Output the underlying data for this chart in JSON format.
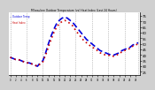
{
  "title": "Milwaukee Outdoor Temperature (vs) Heat Index (Last 24 Hours)",
  "background_color": "#d0d0d0",
  "plot_bg_color": "#ffffff",
  "ylim": [
    22,
    78
  ],
  "ytick_labels": [
    "75",
    "70",
    "65",
    "60",
    "55",
    "50",
    "45",
    "40",
    "35",
    "30",
    "25"
  ],
  "ytick_vals": [
    75,
    70,
    65,
    60,
    55,
    50,
    45,
    40,
    35,
    30,
    25
  ],
  "temp_color": "#0000dd",
  "heat_color": "#cc0000",
  "black_color": "#000000",
  "num_points": 48,
  "temp_x": [
    0,
    1,
    2,
    3,
    4,
    5,
    6,
    7,
    8,
    9,
    10,
    11,
    12,
    13,
    14,
    15,
    16,
    17,
    18,
    19,
    20,
    21,
    22,
    23,
    24,
    25,
    26,
    27,
    28,
    29,
    30,
    31,
    32,
    33,
    34,
    35,
    36,
    37,
    38,
    39,
    40,
    41,
    42,
    43,
    44,
    45,
    46,
    47
  ],
  "temp_y": [
    38,
    37,
    36,
    36,
    35,
    34,
    33,
    33,
    32,
    31,
    30,
    33,
    35,
    42,
    50,
    57,
    63,
    68,
    71,
    73,
    74,
    73,
    71,
    69,
    66,
    63,
    60,
    57,
    54,
    52,
    50,
    48,
    46,
    44,
    43,
    42,
    41,
    40,
    40,
    41,
    42,
    44,
    45,
    46,
    47,
    49,
    50,
    51
  ],
  "heat_y": [
    38,
    37,
    36,
    36,
    35,
    34,
    33,
    33,
    32,
    31,
    30,
    32,
    34,
    40,
    47,
    54,
    60,
    65,
    68,
    70,
    71,
    70,
    68,
    66,
    62,
    59,
    56,
    53,
    51,
    49,
    47,
    46,
    44,
    42,
    41,
    40,
    40,
    39,
    39,
    40,
    41,
    43,
    44,
    45,
    46,
    48,
    49,
    50
  ],
  "vline_x": [
    0,
    6,
    12,
    18,
    24,
    30,
    36,
    42,
    47
  ],
  "legend_text": [
    "-- Outdoor Temp",
    ".. Heat Index"
  ]
}
